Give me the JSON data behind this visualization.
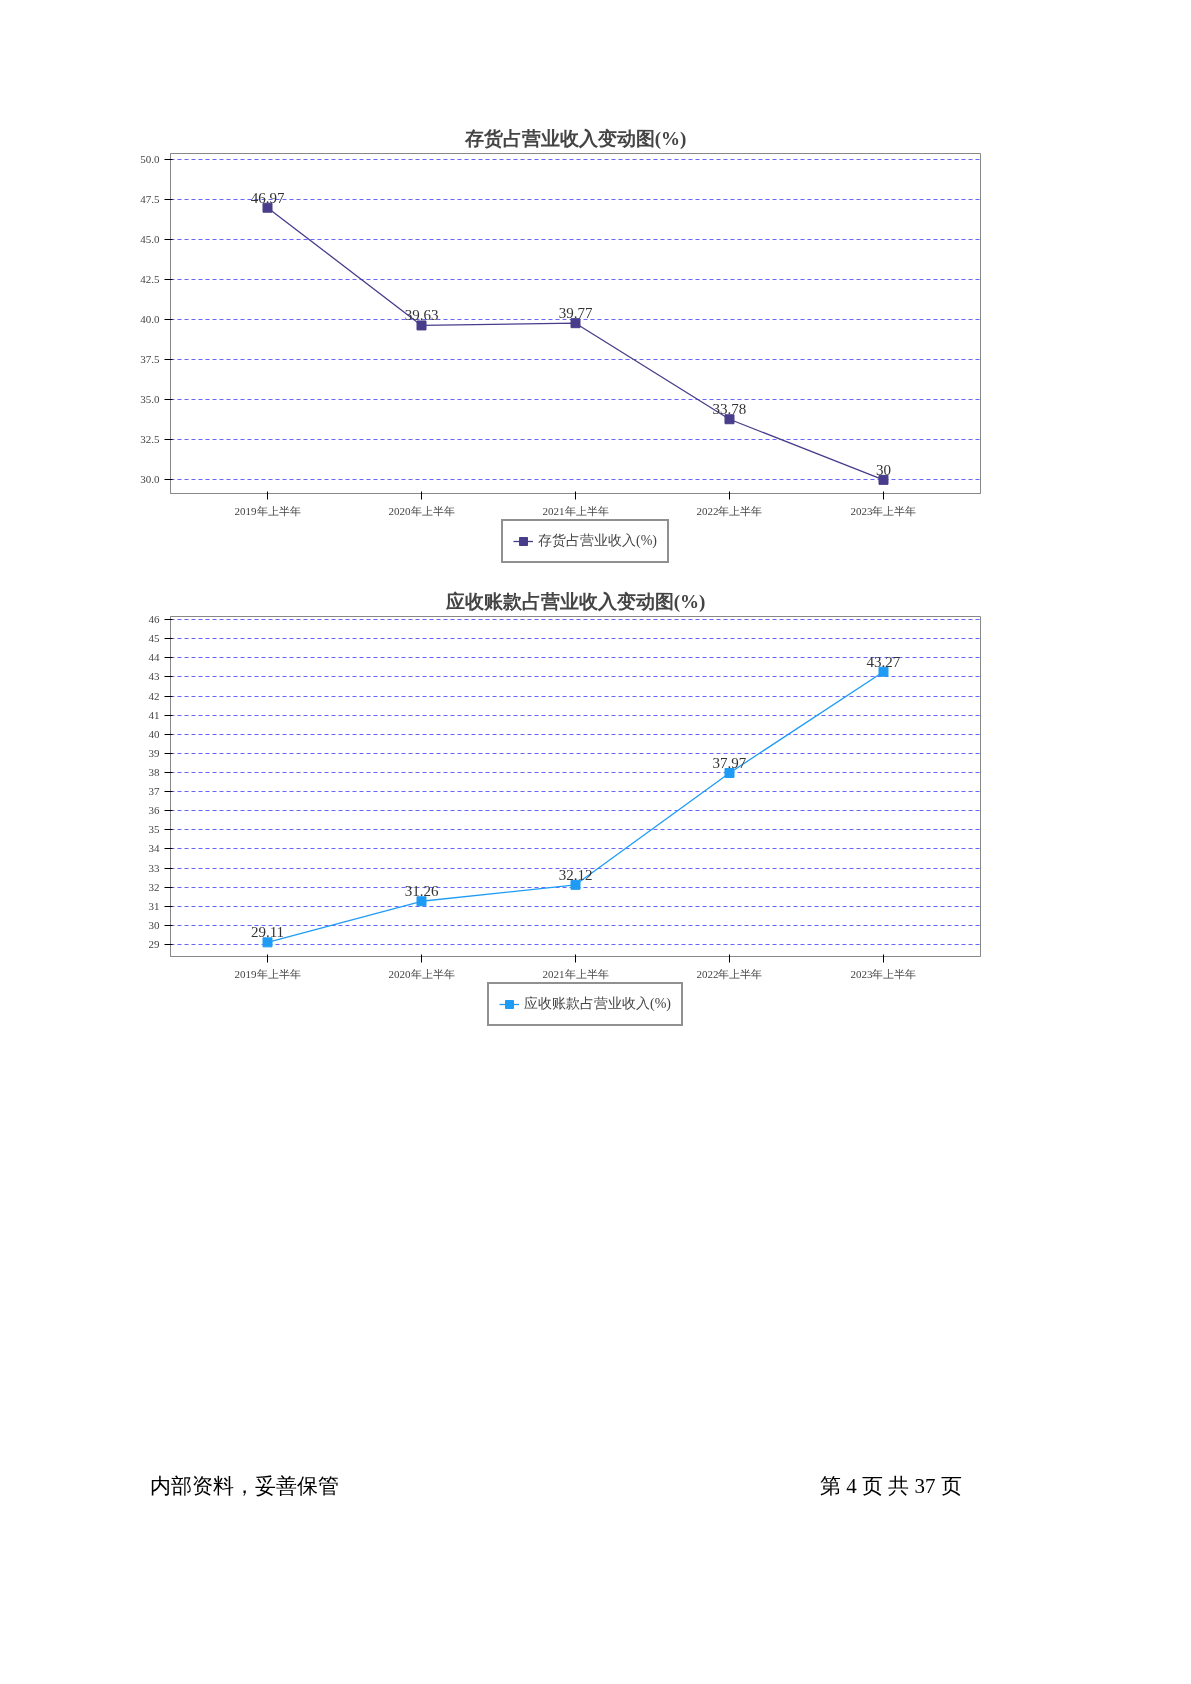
{
  "chart_data": [
    {
      "type": "line",
      "title": "存货占营业收入变动图(%)",
      "categories": [
        "2019年上半年",
        "2020年上半年",
        "2021年上半年",
        "2022年上半年",
        "2023年上半年"
      ],
      "series": [
        {
          "name": "存货占营业收入(%)",
          "color": "#483d8b",
          "values": [
            46.97,
            39.63,
            39.77,
            33.78,
            30
          ]
        }
      ],
      "ylim": [
        29.15,
        50.35
      ],
      "yticks": [
        {
          "value": 30,
          "label": "30.0"
        },
        32.5,
        {
          "value": 35,
          "label": "35.0"
        },
        37.5,
        {
          "value": 40,
          "label": "40.0"
        },
        42.5,
        {
          "value": 45,
          "label": "45.0"
        },
        47.5,
        {
          "value": 50,
          "label": "50.0"
        }
      ],
      "grid": "y",
      "legend": "bottom",
      "marker": "square",
      "line_style": "solid",
      "data_labels": true
    },
    {
      "type": "line",
      "title": "应收账款占营业收入变动图(%)",
      "categories": [
        "2019年上半年",
        "2020年上半年",
        "2021年上半年",
        "2022年上半年",
        "2023年上半年"
      ],
      "series": [
        {
          "name": "应收账款占营业收入(%)",
          "color": "#1e9cf5",
          "values": [
            29.11,
            31.26,
            32.12,
            37.97,
            43.27
          ]
        }
      ],
      "ylim": [
        28.37,
        46.16
      ],
      "yticks": [
        29,
        30,
        31,
        32,
        33,
        34,
        35,
        36,
        37,
        38,
        39,
        40,
        41,
        42,
        43,
        44,
        45,
        46
      ],
      "grid": "y",
      "legend": "bottom",
      "marker": "square",
      "line_style": "solid",
      "data_labels": true,
      "annotations": [
        "内部资料，妥善保管",
        "第 4 页   共 37 页"
      ]
    }
  ]
}
